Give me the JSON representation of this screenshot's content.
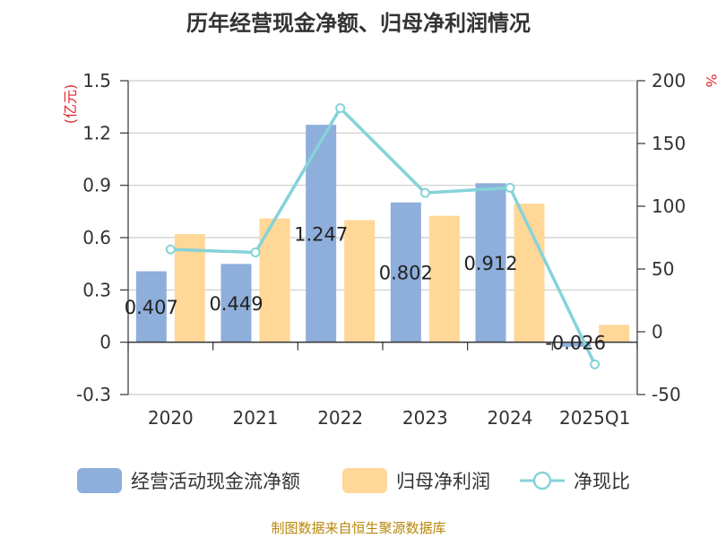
{
  "page": {
    "title": "历年经营现金净额、归母净利润情况",
    "source": "制图数据来自恒生聚源数据库"
  },
  "chart_data": {
    "type": "bar",
    "title": "历年经营现金净额、归母净利润情况",
    "categories": [
      "2020",
      "2021",
      "2022",
      "2023",
      "2024",
      "2025Q1"
    ],
    "left_axis": {
      "label": "(亿元)",
      "ylim": [
        -0.3,
        1.5
      ],
      "ticks": [
        "-0.3",
        "0",
        "0.3",
        "0.6",
        "0.9",
        "1.2",
        "1.5"
      ]
    },
    "right_axis": {
      "label": "%",
      "ylim": [
        -50,
        200
      ],
      "ticks": [
        "-50",
        "0",
        "50",
        "100",
        "150",
        "200"
      ]
    },
    "series": [
      {
        "name": "经营活动现金流净额",
        "kind": "bar",
        "axis": "left",
        "color": "#8eaedb",
        "values": [
          0.407,
          0.449,
          1.247,
          0.802,
          0.912,
          -0.026
        ],
        "labels": [
          "0.407",
          "0.449",
          "1.247",
          "0.802",
          "0.912",
          "-0.026"
        ]
      },
      {
        "name": "归母净利润",
        "kind": "bar",
        "axis": "left",
        "color": "#ffd797",
        "values": [
          0.62,
          0.71,
          0.7,
          0.725,
          0.795,
          0.1
        ]
      },
      {
        "name": "净现比",
        "kind": "line",
        "axis": "right",
        "color": "#85d3d8",
        "values": [
          65.6,
          63.2,
          178.1,
          110.6,
          114.7,
          -26
        ]
      }
    ],
    "grid": true,
    "legend_position": "bottom"
  }
}
